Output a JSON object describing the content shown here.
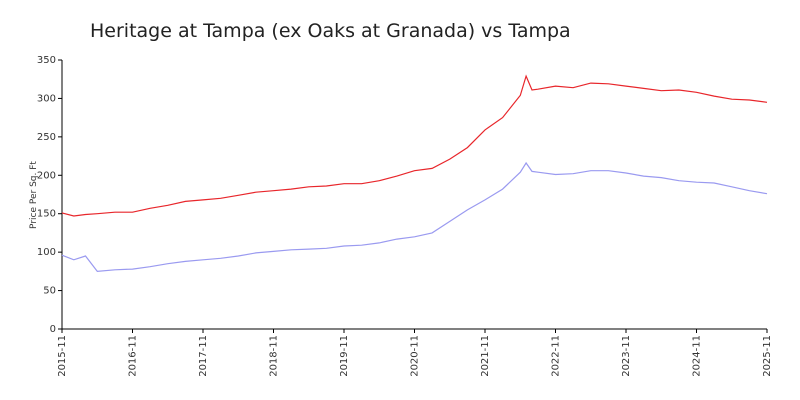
{
  "chart_data": {
    "type": "line",
    "title": "Heritage at Tampa (ex Oaks at Granada) vs Tampa",
    "y_label": "Price Per Sq. Ft",
    "x": [
      "2015-11",
      "2016-01",
      "2016-03",
      "2016-05",
      "2016-08",
      "2016-11",
      "2017-02",
      "2017-05",
      "2017-08",
      "2017-11",
      "2018-02",
      "2018-05",
      "2018-08",
      "2018-11",
      "2019-02",
      "2019-05",
      "2019-08",
      "2019-11",
      "2020-02",
      "2020-05",
      "2020-08",
      "2020-11",
      "2021-02",
      "2021-05",
      "2021-08",
      "2021-11",
      "2022-02",
      "2022-05",
      "2022-06",
      "2022-07",
      "2022-08",
      "2022-11",
      "2023-02",
      "2023-05",
      "2023-08",
      "2023-11",
      "2024-02",
      "2024-05",
      "2024-08",
      "2024-11",
      "2025-02",
      "2025-05",
      "2025-08",
      "2025-11"
    ],
    "series": [
      {
        "color": "#e8262b",
        "values": [
          151,
          147,
          149,
          150,
          152,
          152,
          157,
          161,
          166,
          168,
          170,
          174,
          178,
          180,
          182,
          185,
          186,
          189,
          189,
          193,
          199,
          206,
          209,
          221,
          236,
          259,
          275,
          304,
          329,
          311,
          312,
          316,
          314,
          320,
          319,
          316,
          313,
          310,
          311,
          308,
          303,
          299,
          298,
          295
        ]
      },
      {
        "color": "#9a9af0",
        "values": [
          96,
          90,
          95,
          75,
          77,
          78,
          81,
          85,
          88,
          90,
          92,
          95,
          99,
          101,
          103,
          104,
          105,
          108,
          109,
          112,
          117,
          120,
          125,
          140,
          155,
          168,
          182,
          204,
          216,
          205,
          204,
          201,
          202,
          206,
          206,
          203,
          199,
          197,
          193,
          191,
          190,
          185,
          180,
          176
        ]
      }
    ],
    "xlim": [
      "2015-11",
      "2025-11"
    ],
    "xticks": [
      "2015-11",
      "2016-11",
      "2017-11",
      "2018-11",
      "2019-11",
      "2020-11",
      "2021-11",
      "2022-11",
      "2023-11",
      "2024-11",
      "2025-11"
    ],
    "ylim": [
      0,
      350
    ],
    "yticks": [
      0,
      50,
      100,
      150,
      200,
      250,
      300,
      350
    ],
    "grid": false
  }
}
